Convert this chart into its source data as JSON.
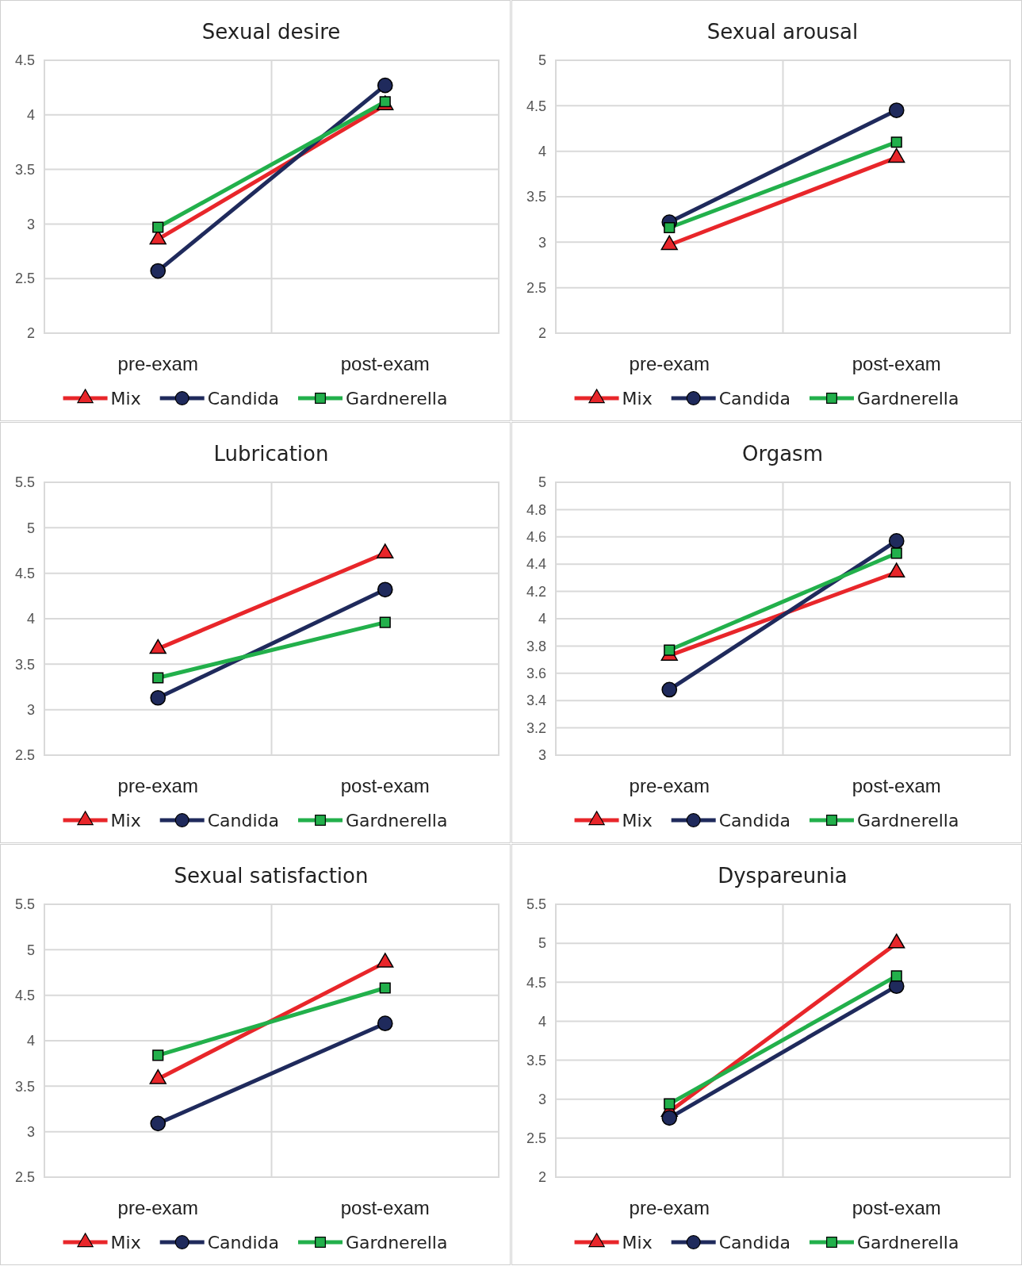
{
  "chart_data": [
    {
      "type": "line",
      "title": "Sexual desire",
      "categories": [
        "pre-exam",
        "post-exam"
      ],
      "ylim": [
        2,
        4.5
      ],
      "yticks": [
        2,
        2.5,
        3,
        3.5,
        4,
        4.5
      ],
      "grid": true,
      "legend": "bottom",
      "series": [
        {
          "name": "Mix",
          "color": "#e8262a",
          "marker": "triangle",
          "values": [
            2.86,
            4.09
          ]
        },
        {
          "name": "Candida",
          "color": "#1f2a5c",
          "marker": "circle",
          "values": [
            2.57,
            4.27
          ]
        },
        {
          "name": "Gardnerella",
          "color": "#22b04b",
          "marker": "square",
          "values": [
            2.97,
            4.12
          ]
        }
      ]
    },
    {
      "type": "line",
      "title": "Sexual arousal",
      "categories": [
        "pre-exam",
        "post-exam"
      ],
      "ylim": [
        2,
        5
      ],
      "yticks": [
        2,
        2.5,
        3,
        3.5,
        4,
        4.5,
        5
      ],
      "grid": true,
      "legend": "bottom",
      "series": [
        {
          "name": "Mix",
          "color": "#e8262a",
          "marker": "triangle",
          "values": [
            2.97,
            3.93
          ]
        },
        {
          "name": "Candida",
          "color": "#1f2a5c",
          "marker": "circle",
          "values": [
            3.22,
            4.45
          ]
        },
        {
          "name": "Gardnerella",
          "color": "#22b04b",
          "marker": "square",
          "values": [
            3.16,
            4.1
          ]
        }
      ]
    },
    {
      "type": "line",
      "title": "Lubrication",
      "categories": [
        "pre-exam",
        "post-exam"
      ],
      "ylim": [
        2.5,
        5.5
      ],
      "yticks": [
        2.5,
        3,
        3.5,
        4,
        4.5,
        5,
        5.5
      ],
      "grid": true,
      "legend": "bottom",
      "series": [
        {
          "name": "Mix",
          "color": "#e8262a",
          "marker": "triangle",
          "values": [
            3.67,
            4.72
          ]
        },
        {
          "name": "Candida",
          "color": "#1f2a5c",
          "marker": "circle",
          "values": [
            3.13,
            4.32
          ]
        },
        {
          "name": "Gardnerella",
          "color": "#22b04b",
          "marker": "square",
          "values": [
            3.35,
            3.96
          ]
        }
      ]
    },
    {
      "type": "line",
      "title": "Orgasm",
      "categories": [
        "pre-exam",
        "post-exam"
      ],
      "ylim": [
        3,
        5
      ],
      "yticks": [
        3,
        3.2,
        3.4,
        3.6,
        3.8,
        4,
        4.2,
        4.4,
        4.6,
        4.8,
        5
      ],
      "grid": true,
      "legend": "bottom",
      "series": [
        {
          "name": "Mix",
          "color": "#e8262a",
          "marker": "triangle",
          "values": [
            3.73,
            4.34
          ]
        },
        {
          "name": "Candida",
          "color": "#1f2a5c",
          "marker": "circle",
          "values": [
            3.48,
            4.57
          ]
        },
        {
          "name": "Gardnerella",
          "color": "#22b04b",
          "marker": "square",
          "values": [
            3.77,
            4.48
          ]
        }
      ]
    },
    {
      "type": "line",
      "title": "Sexual satisfaction",
      "categories": [
        "pre-exam",
        "post-exam"
      ],
      "ylim": [
        2.5,
        5.5
      ],
      "yticks": [
        2.5,
        3,
        3.5,
        4,
        4.5,
        5,
        5.5
      ],
      "grid": true,
      "legend": "bottom",
      "series": [
        {
          "name": "Mix",
          "color": "#e8262a",
          "marker": "triangle",
          "values": [
            3.58,
            4.86
          ]
        },
        {
          "name": "Candida",
          "color": "#1f2a5c",
          "marker": "circle",
          "values": [
            3.09,
            4.19
          ]
        },
        {
          "name": "Gardnerella",
          "color": "#22b04b",
          "marker": "square",
          "values": [
            3.84,
            4.58
          ]
        }
      ]
    },
    {
      "type": "line",
      "title": "Dyspareunia",
      "categories": [
        "pre-exam",
        "post-exam"
      ],
      "ylim": [
        2,
        5.5
      ],
      "yticks": [
        2,
        2.5,
        3,
        3.5,
        4,
        4.5,
        5,
        5.5
      ],
      "grid": true,
      "legend": "bottom",
      "series": [
        {
          "name": "Mix",
          "color": "#e8262a",
          "marker": "triangle",
          "values": [
            2.84,
            5.0
          ]
        },
        {
          "name": "Candida",
          "color": "#1f2a5c",
          "marker": "circle",
          "values": [
            2.76,
            4.45
          ]
        },
        {
          "name": "Gardnerella",
          "color": "#22b04b",
          "marker": "square",
          "values": [
            2.94,
            4.58
          ]
        }
      ]
    }
  ]
}
